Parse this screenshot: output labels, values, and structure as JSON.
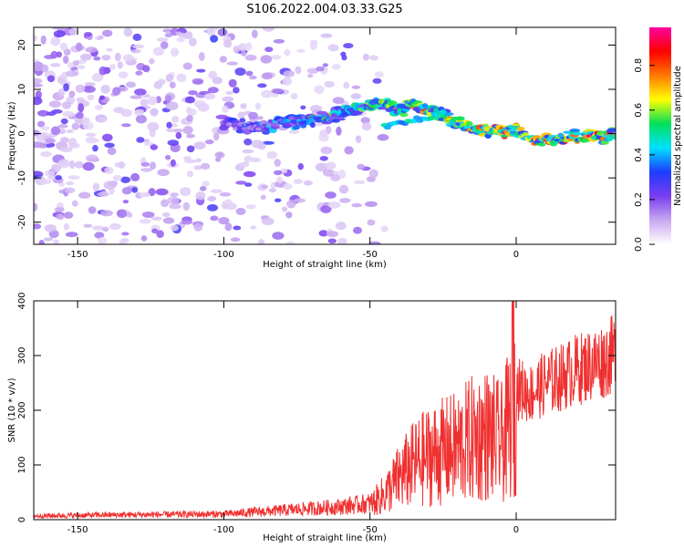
{
  "figure": {
    "title": "S106.2022.004.03.33.G25"
  },
  "chart_data": [
    {
      "type": "heatmap",
      "title": "S106.2022.004.03.33.G25",
      "xlabel": "Height of straight line (km)",
      "ylabel": "Frequency (Hz)",
      "xlim": [
        -165,
        34
      ],
      "ylim": [
        -25,
        24
      ],
      "x_ticks": [
        -150,
        -100,
        -50,
        0
      ],
      "y_ticks": [
        -20,
        -10,
        0,
        10,
        20
      ],
      "colorbar": {
        "label": "Normalized spectral amplitude",
        "range": [
          0,
          0.97
        ],
        "ticks": [
          "0.0",
          "0.2",
          "0.4",
          "0.6",
          "0.8"
        ],
        "colors": [
          "#ffffff",
          "#c8a8f0",
          "#7a3df0",
          "#1e3cff",
          "#00e0ff",
          "#00e05a",
          "#ffff00",
          "#ff7800",
          "#ff0000",
          "#ff00a0"
        ]
      },
      "ridge": {
        "description_points_x": [
          -100,
          -90,
          -80,
          -70,
          -60,
          -50,
          -45,
          -40,
          -35,
          -30,
          -25,
          -20,
          -15,
          -10,
          -5,
          0,
          5,
          10,
          20,
          34
        ],
        "description_points_y": [
          2.5,
          1.0,
          2.5,
          3.0,
          4.5,
          7.0,
          6.5,
          5.0,
          7.0,
          5.5,
          4.0,
          2.0,
          1.5,
          0.5,
          0.5,
          1.0,
          -1.0,
          -1.5,
          -0.5,
          -0.5
        ]
      }
    },
    {
      "type": "line",
      "xlabel": "Height of straight line (km)",
      "ylabel": "SNR (10 * v/v)",
      "xlim": [
        -165,
        34
      ],
      "ylim": [
        0,
        400
      ],
      "x_ticks": [
        -150,
        -100,
        -50,
        0
      ],
      "y_ticks": [
        0,
        100,
        200,
        300,
        400
      ],
      "color": "#f03030",
      "envelope": {
        "x": [
          -165,
          -140,
          -120,
          -100,
          -80,
          -60,
          -50,
          -45,
          -40,
          -35,
          -30,
          -25,
          -20,
          -15,
          -10,
          -5,
          -2,
          0,
          5,
          10,
          15,
          20,
          25,
          30,
          34
        ],
        "y": [
          8,
          10,
          11,
          12,
          20,
          28,
          35,
          60,
          100,
          130,
          150,
          160,
          170,
          190,
          200,
          180,
          230,
          260,
          250,
          270,
          280,
          295,
          305,
          315,
          330
        ]
      }
    }
  ]
}
